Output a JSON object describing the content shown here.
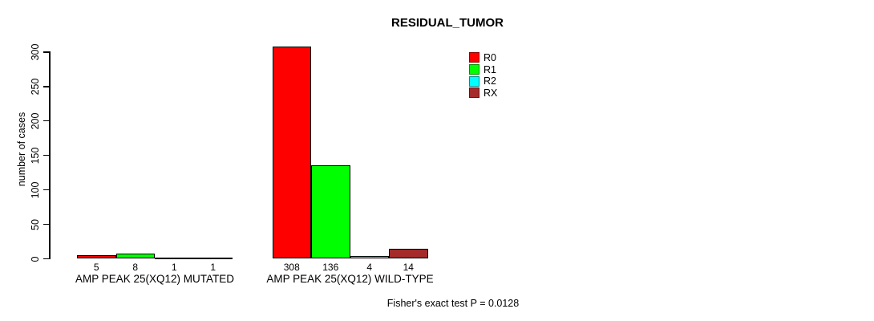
{
  "chart_data": {
    "type": "bar",
    "title": "RESIDUAL_TUMOR",
    "ylabel": "number of cases",
    "xlabel": "",
    "ylim": [
      0,
      300
    ],
    "yticks": [
      0,
      50,
      100,
      150,
      200,
      250,
      300
    ],
    "grid": false,
    "legend_position": "top-right",
    "show_bar_value_labels": true,
    "categories": [
      "AMP PEAK 25(XQ12) MUTATED",
      "AMP PEAK 25(XQ12) WILD-TYPE"
    ],
    "series": [
      {
        "name": "R0",
        "color": "#FF0000",
        "values": [
          5,
          308
        ]
      },
      {
        "name": "R1",
        "color": "#00FF00",
        "values": [
          8,
          136
        ]
      },
      {
        "name": "R2",
        "color": "#00FFFF",
        "values": [
          1,
          4
        ]
      },
      {
        "name": "RX",
        "color": "#A52A2A",
        "values": [
          1,
          14
        ]
      }
    ],
    "footnote": "Fisher's exact test P = 0.0128"
  }
}
